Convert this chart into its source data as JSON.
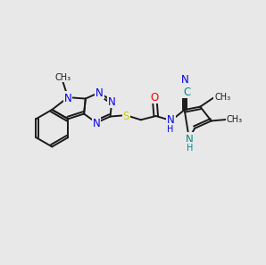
{
  "bg_color": "#e8e8e8",
  "bond_color": "#1a1a1a",
  "bond_width": 1.4,
  "atom_colors": {
    "N": "#0000ee",
    "S": "#cccc00",
    "O": "#ff0000",
    "C_teal": "#008888",
    "H_teal": "#008888"
  },
  "font_size": 8.5,
  "font_size_sub": 7.0,
  "figsize": [
    3.0,
    3.0
  ],
  "dpi": 100
}
